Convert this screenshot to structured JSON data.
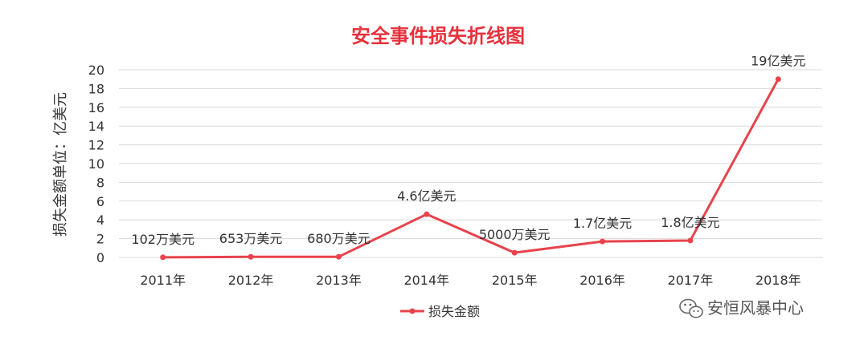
{
  "chart_data": {
    "type": "line",
    "title": "安全事件损失折线图",
    "ylabel": "损失金额单位：亿美元",
    "xlabel": "",
    "categories": [
      "2011年",
      "2012年",
      "2013年",
      "2014年",
      "2015年",
      "2016年",
      "2017年",
      "2018年"
    ],
    "series": [
      {
        "name": "损失金额",
        "values": [
          0.0102,
          0.0653,
          0.068,
          4.6,
          0.5,
          1.7,
          1.8,
          19
        ],
        "data_labels": [
          "102万美元",
          "653万美元",
          "680万美元",
          "4.6亿美元",
          "5000万美元",
          "1.7亿美元",
          "1.8亿美元",
          "19亿美元"
        ],
        "color": "#e8434c"
      }
    ],
    "ylim": [
      0,
      20
    ],
    "yticks": [
      0,
      2,
      4,
      6,
      8,
      10,
      12,
      14,
      16,
      18,
      20
    ],
    "grid": true,
    "legend": "bottom"
  },
  "watermark": {
    "icon": "wechat-icon",
    "text": "安恒风暴中心"
  }
}
